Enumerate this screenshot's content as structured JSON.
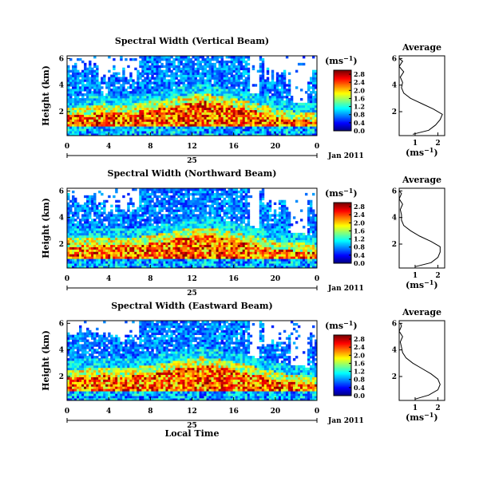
{
  "chart_data": {
    "type": "heatmap",
    "date_label": "Jan 2011",
    "day_label": "25",
    "xlabel": "Local Time",
    "ylabel": "Height (km)",
    "x_ticks": [
      "0",
      "4",
      "8",
      "12",
      "16",
      "20",
      "0"
    ],
    "x_range_hours": [
      0,
      24
    ],
    "y_ticks": [
      "2",
      "4",
      "6"
    ],
    "y_range_km": [
      0.2,
      6.2
    ],
    "colorbar_unit": "(ms",
    "colorbar_exp": "−1",
    "colorbar_ticks": [
      "0.0",
      "0.4",
      "0.8",
      "1.2",
      "1.6",
      "2.0",
      "2.4",
      "2.8"
    ],
    "colorbar_range": [
      0,
      3.0
    ],
    "profile_title": "Average",
    "profile_xlabel": "(ms",
    "profile_xlabel_exp": "−1",
    "profile_xticks": [
      "1",
      "2"
    ],
    "profile_yticks": [
      "2",
      "4",
      "6"
    ],
    "panels": [
      {
        "title": "Spectral Width (Vertical Beam)",
        "bottom_layer_top_km": [
          2.0,
          2.1,
          2.3,
          2.2,
          2.4,
          2.6,
          2.9,
          3.1,
          2.9,
          2.6,
          2.3,
          1.9,
          1.7,
          1.6
        ],
        "profile_km": [
          0.3,
          0.6,
          1.0,
          1.4,
          1.8,
          2.2,
          2.6,
          3.0,
          3.4,
          3.8,
          4.2,
          4.6,
          5.0,
          5.4,
          5.8,
          6.0
        ],
        "profile_ms": [
          0.9,
          1.6,
          1.9,
          2.1,
          2.2,
          1.8,
          1.3,
          0.8,
          0.5,
          0.4,
          0.45,
          0.35,
          0.5,
          0.3,
          0.45,
          0.3
        ]
      },
      {
        "title": "Spectral Width (Northward Beam)",
        "bottom_layer_top_km": [
          2.1,
          2.2,
          2.3,
          2.2,
          2.3,
          2.5,
          2.8,
          3.0,
          2.8,
          2.5,
          2.2,
          1.9,
          1.8,
          1.7
        ],
        "profile_km": [
          0.3,
          0.6,
          1.0,
          1.4,
          1.8,
          2.2,
          2.6,
          3.0,
          3.4,
          3.8,
          4.2,
          4.6,
          5.0,
          5.4,
          5.8,
          6.0
        ],
        "profile_ms": [
          1.0,
          1.7,
          2.0,
          2.1,
          2.1,
          1.7,
          1.2,
          0.8,
          0.5,
          0.4,
          0.4,
          0.35,
          0.45,
          0.3,
          0.4,
          0.3
        ]
      },
      {
        "title": "Spectral Width (Eastward Beam)",
        "bottom_layer_top_km": [
          2.2,
          2.3,
          2.4,
          2.3,
          2.5,
          2.7,
          3.0,
          3.2,
          3.0,
          2.7,
          2.4,
          2.0,
          1.8,
          1.7
        ],
        "profile_km": [
          0.3,
          0.6,
          1.0,
          1.4,
          1.8,
          2.2,
          2.6,
          3.0,
          3.4,
          3.8,
          4.2,
          4.6,
          5.0,
          5.4,
          5.8,
          6.0
        ],
        "profile_ms": [
          1.0,
          1.6,
          2.0,
          2.1,
          2.0,
          1.7,
          1.3,
          0.9,
          0.6,
          0.45,
          0.4,
          0.35,
          0.45,
          0.3,
          0.4,
          0.35
        ]
      }
    ]
  }
}
